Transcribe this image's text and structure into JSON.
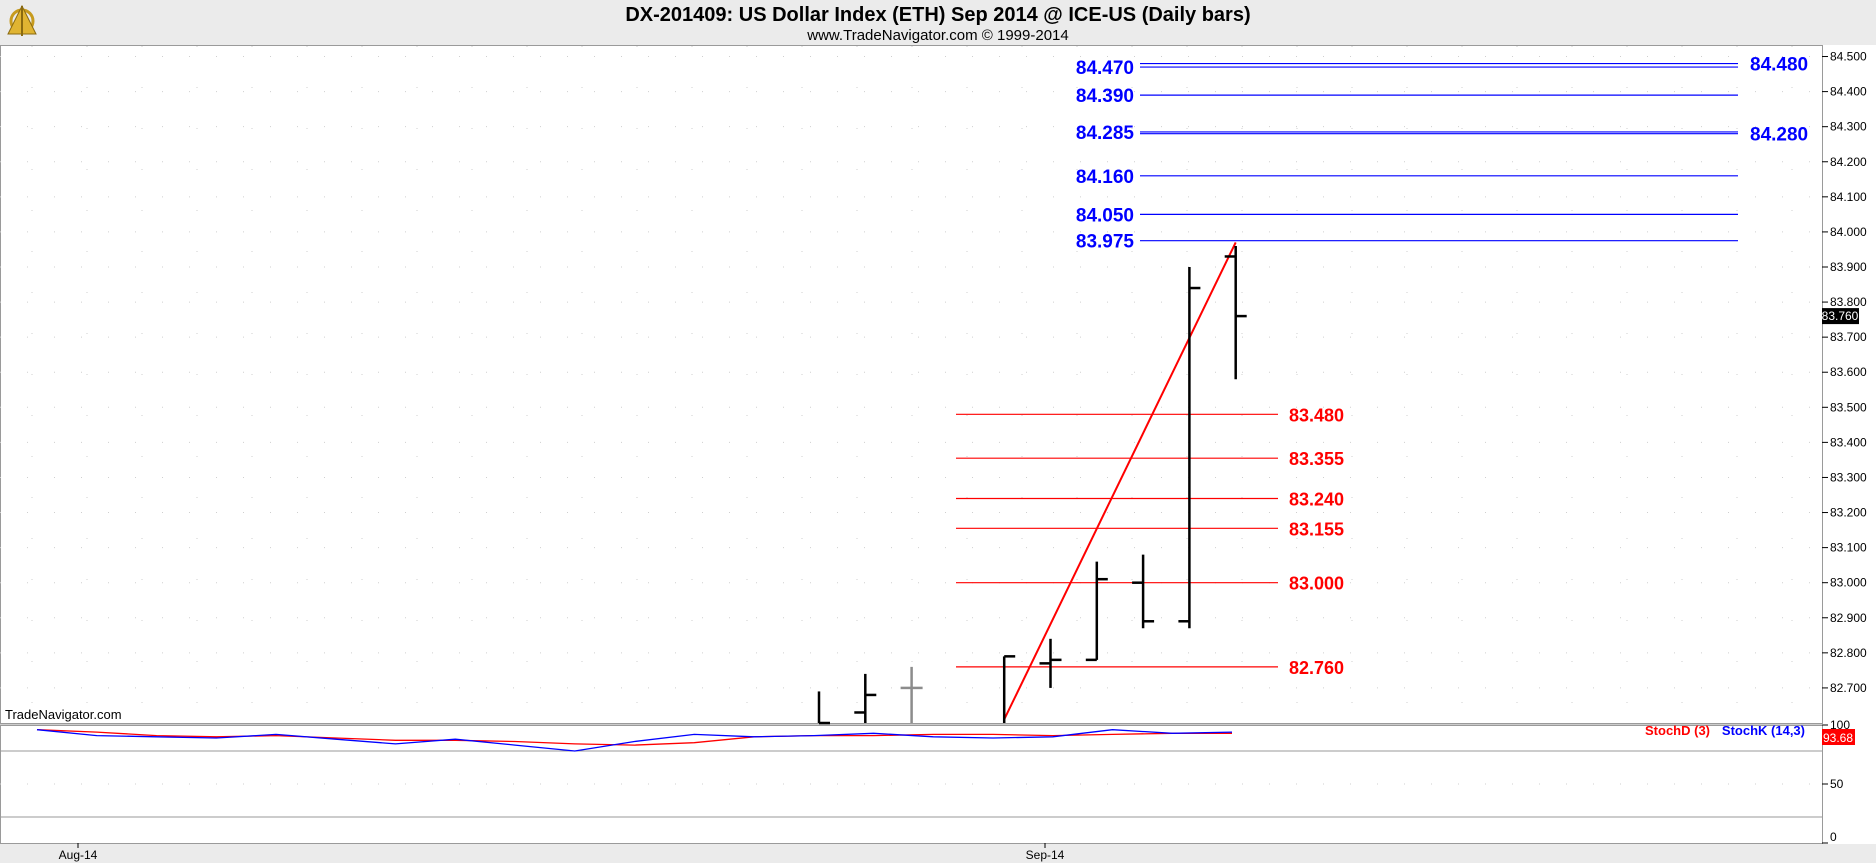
{
  "header": {
    "title": "DX-201409:  US Dollar Index (ETH) Sep 2014 @ ICE-US  (Daily bars)",
    "subtitle": "www.TradeNavigator.com © 1999-2014",
    "watermark": "TradeNavigator.com",
    "logo_icon": "trade-navigator-sextant-logo"
  },
  "chart_data": [
    {
      "type": "ohlc",
      "panel": "price",
      "y_range": [
        82.6,
        84.53
      ],
      "y_ticks": [
        "84.500",
        "84.400",
        "84.300",
        "84.200",
        "84.100",
        "84.000",
        "83.900",
        "83.800",
        "83.700",
        "83.600",
        "83.500",
        "83.400",
        "83.300",
        "83.200",
        "83.100",
        "83.000",
        "82.900",
        "82.800",
        "82.700"
      ],
      "x_labels": [
        "Aug-14",
        "Sep-14"
      ],
      "last_price": "83.760",
      "grid": true,
      "bars": [
        {
          "i": 0,
          "h": 82.69,
          "l": 82.6,
          "c": 82.6
        },
        {
          "i": 1,
          "h": 82.74,
          "l": 82.6,
          "o": 82.63,
          "c": 82.68
        },
        {
          "i": 2,
          "h": 82.76,
          "l": 82.6,
          "o": 82.7,
          "c": 82.7,
          "muted": true
        },
        {
          "i": 4,
          "h": 82.79,
          "l": 82.6,
          "c": 82.79
        },
        {
          "i": 5,
          "h": 82.84,
          "l": 82.7,
          "o": 82.77,
          "c": 82.78
        },
        {
          "i": 6,
          "h": 83.06,
          "l": 82.78,
          "o": 82.78,
          "c": 83.01
        },
        {
          "i": 7,
          "h": 83.08,
          "l": 82.87,
          "o": 83.0,
          "c": 82.89
        },
        {
          "i": 8,
          "h": 83.9,
          "l": 82.87,
          "o": 82.89,
          "c": 83.84
        },
        {
          "i": 9,
          "h": 83.96,
          "l": 83.58,
          "o": 83.93,
          "c": 83.76
        }
      ],
      "trend_line": {
        "from": {
          "i": 4,
          "y": 82.61
        },
        "to": {
          "i": 9,
          "y": 83.97
        }
      },
      "resistance_levels": [
        "84.470",
        "84.390",
        "84.285",
        "84.160",
        "84.050",
        "83.975"
      ],
      "resistance_right_labels": [
        "84.480",
        "84.280"
      ],
      "support_levels": [
        "83.480",
        "83.355",
        "83.240",
        "83.155",
        "83.000",
        "82.760"
      ],
      "colors": {
        "resistance": "#0000ff",
        "support": "#ff0000",
        "bars": "#000000",
        "muted_bar": "#8c8c8c",
        "trend": "#ff0000"
      }
    },
    {
      "type": "line",
      "panel": "stochastic",
      "y_range": [
        0,
        100
      ],
      "y_ticks": [
        "100",
        "50",
        "0"
      ],
      "last_value": "93.68",
      "legend": [
        "StochD (3)",
        "StochK (14,3)"
      ],
      "series": [
        {
          "name": "StochD (3)",
          "color": "#ff0000",
          "values": [
            96,
            94,
            91,
            90,
            91,
            89,
            87,
            87,
            86,
            84,
            83,
            85,
            90,
            91,
            91,
            92,
            92,
            91,
            92,
            93,
            93
          ]
        },
        {
          "name": "StochK (14,3)",
          "color": "#0000ff",
          "values": [
            96,
            91,
            90,
            89,
            92,
            88,
            84,
            88,
            83,
            78,
            86,
            92,
            90,
            91,
            93,
            90,
            89,
            90,
            96,
            93,
            94
          ]
        }
      ]
    }
  ]
}
